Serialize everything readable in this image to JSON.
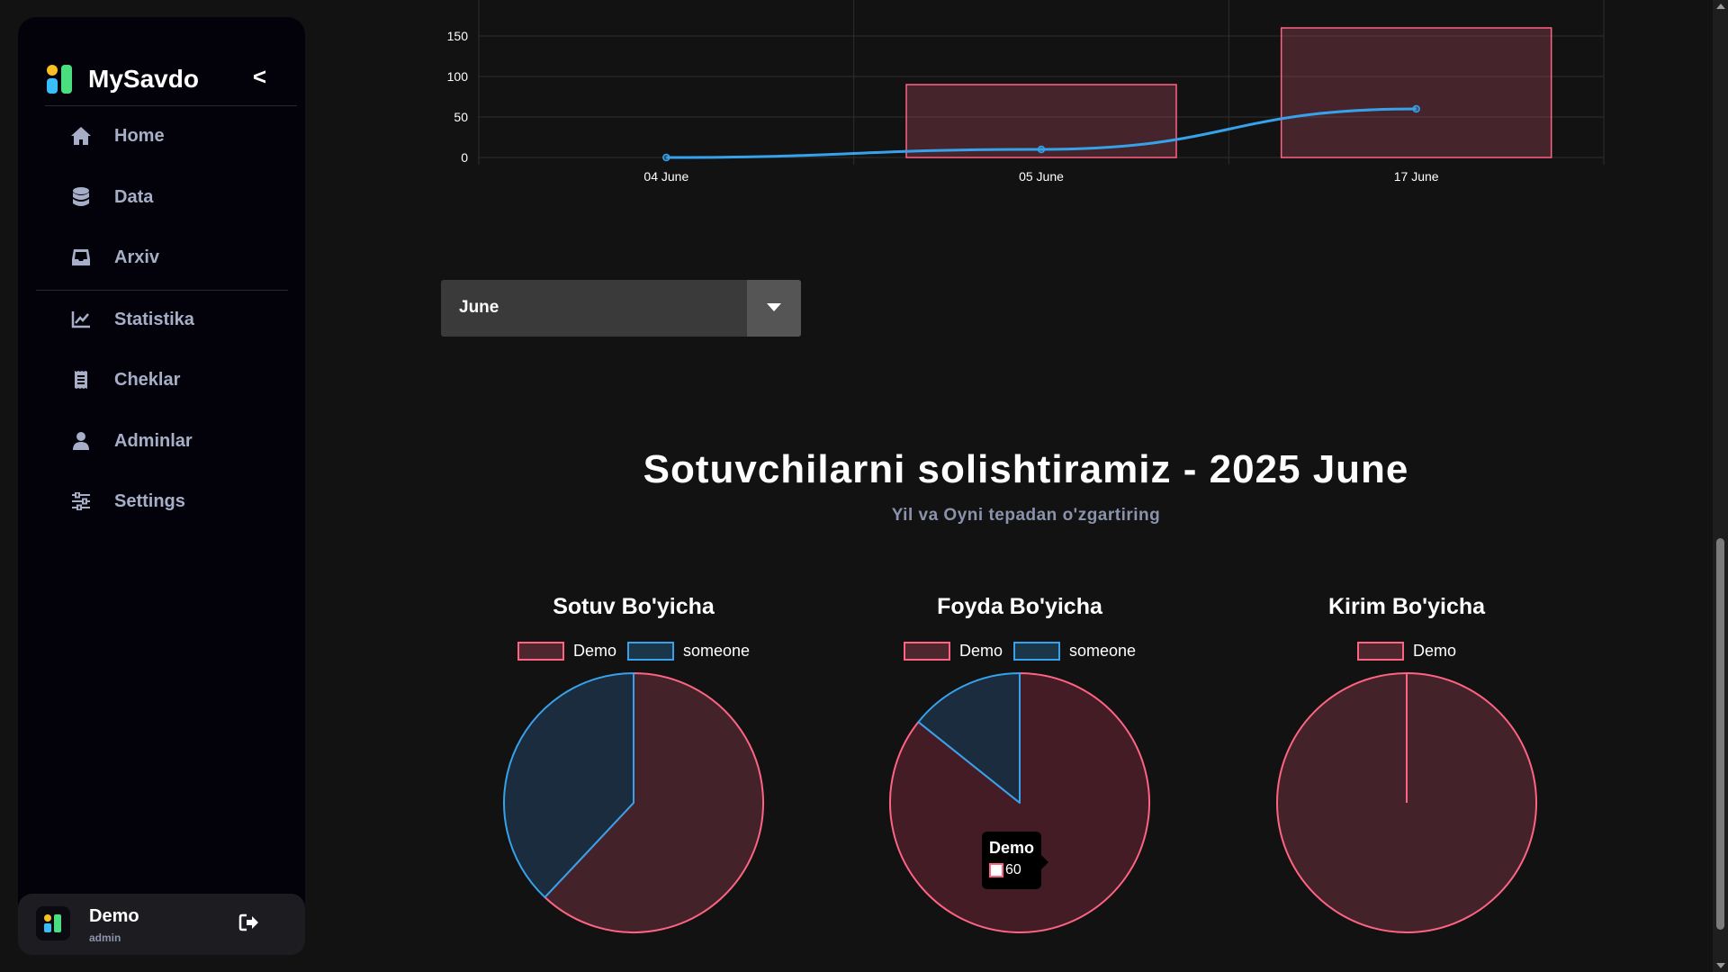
{
  "sidebar": {
    "brand": "MySavdo",
    "collapse_label": "<",
    "items": [
      {
        "label": "Home",
        "icon": "home-icon"
      },
      {
        "label": "Data",
        "icon": "database-icon"
      },
      {
        "label": "Arxiv",
        "icon": "inbox-icon"
      },
      {
        "label": "Statistika",
        "icon": "chart-line-icon"
      },
      {
        "label": "Cheklar",
        "icon": "receipt-icon"
      },
      {
        "label": "Adminlar",
        "icon": "user-icon"
      },
      {
        "label": "Settings",
        "icon": "sliders-icon"
      }
    ],
    "user": {
      "name": "Demo",
      "role": "admin"
    }
  },
  "filter": {
    "selected_month": "June"
  },
  "section": {
    "title": "Sotuvchilarni solishtiramiz - 2025 June",
    "subtitle": "Yil va Oyni tepadan o'zgartiring"
  },
  "tooltip": {
    "title": "Demo",
    "value": "60"
  },
  "colors": {
    "red": "#ff6384",
    "blue": "#36a2eb"
  },
  "chart_data": [
    {
      "type": "bar",
      "categories": [
        "04 June",
        "05 June",
        "17 June"
      ],
      "y_ticks": [
        "0",
        "50",
        "100",
        "150"
      ],
      "series": [
        {
          "type": "bar",
          "values": [
            0,
            90,
            160
          ]
        },
        {
          "type": "line",
          "values": [
            0,
            10,
            60
          ]
        }
      ]
    },
    {
      "type": "pie",
      "title": "Sotuv Bo'yicha",
      "labels": [
        "Demo",
        "someone"
      ],
      "values": [
        62,
        38
      ]
    },
    {
      "type": "pie",
      "title": "Foyda Bo'yicha",
      "labels": [
        "Demo",
        "someone"
      ],
      "values": [
        60,
        10
      ]
    },
    {
      "type": "pie",
      "title": "Kirim Bo'yicha",
      "labels": [
        "Demo"
      ],
      "values": [
        100
      ]
    }
  ]
}
